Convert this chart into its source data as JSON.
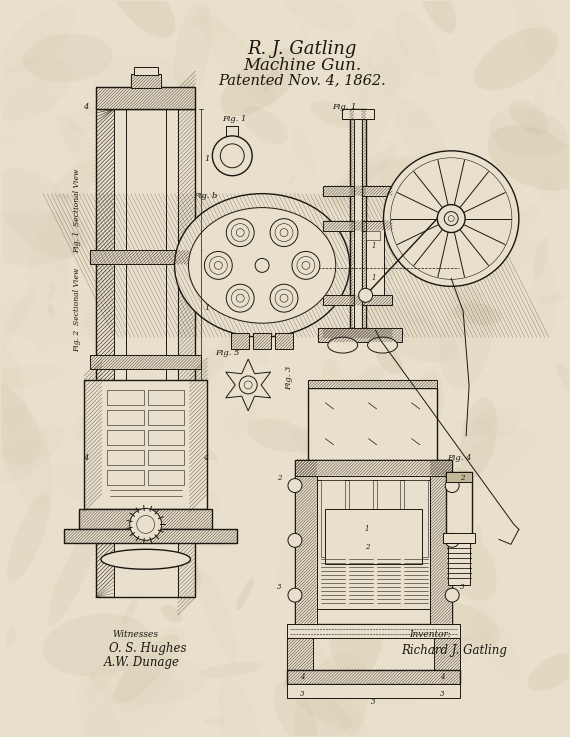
{
  "title_line1": "R. J. Gatling",
  "title_line2": "Machine Gun.",
  "title_line3": "Patented Nov. 4, 1862.",
  "witnesses_label": "Witnesses",
  "witness1": "O. S. Hughes",
  "witness2": "A.W. Dunage",
  "inventor_label": "Inventor:",
  "inventor": "Richard J. Gatling",
  "bg_paper": "#e8e0cc",
  "ink_color": "#1c1610",
  "hatch_color": "#2a2018",
  "fig_width": 5.7,
  "fig_height": 7.37,
  "dpi": 100
}
